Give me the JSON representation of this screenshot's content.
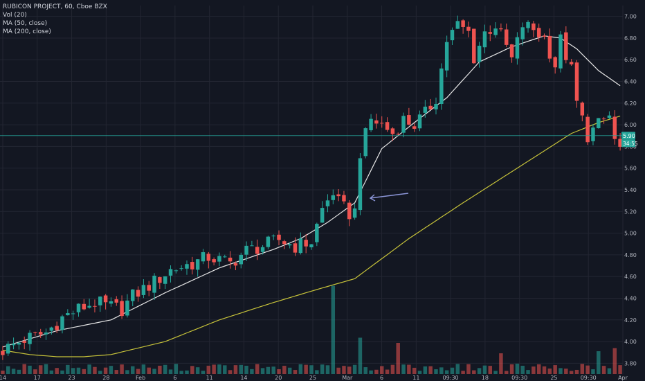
{
  "legend": {
    "title": "RUBICON PROJECT, 60, Cboe BZX",
    "vol": "Vol (20)",
    "ma50": "MA (50, close)",
    "ma200": "MA (200, close)"
  },
  "price_tag": {
    "price": "5.90",
    "countdown": "34:55"
  },
  "colors": {
    "background": "#131722",
    "grid": "#232632",
    "up": "#26a69a",
    "down": "#ef5350",
    "ma50": "#e6e6e6",
    "ma200": "#c8c43a",
    "price_line": "#26a69a",
    "arrow": "#8c96d8",
    "axis_text": "#b2b5be"
  },
  "chart_data": {
    "type": "candlestick",
    "title": "RUBICON PROJECT, 60, Cboe BZX",
    "ylim": [
      3.7,
      7.1
    ],
    "yticks": [
      "3.80",
      "4.00",
      "4.20",
      "4.40",
      "4.60",
      "4.80",
      "5.00",
      "5.20",
      "5.40",
      "5.60",
      "5.80",
      "6.00",
      "6.20",
      "6.40",
      "6.60",
      "6.80",
      "7.00"
    ],
    "xticks": [
      "14",
      "17",
      "23",
      "28",
      "Feb",
      "6",
      "11",
      "14",
      "20",
      "25",
      "Mar",
      "6",
      "11",
      "09:30",
      "18",
      "09:30",
      "25",
      "09:30",
      "Apr"
    ],
    "last_price": 5.9,
    "grid": true,
    "series_anchors": {
      "price": [
        [
          0,
          3.92
        ],
        [
          4,
          4.02
        ],
        [
          8,
          4.08
        ],
        [
          11,
          4.22
        ],
        [
          14,
          4.3
        ],
        [
          17,
          4.36
        ],
        [
          20,
          4.32
        ],
        [
          22,
          4.3
        ],
        [
          24,
          4.42
        ],
        [
          28,
          4.55
        ],
        [
          31,
          4.66
        ],
        [
          35,
          4.72
        ],
        [
          38,
          4.78
        ],
        [
          42,
          4.72
        ],
        [
          45,
          4.84
        ],
        [
          48,
          4.88
        ],
        [
          51,
          4.94
        ],
        [
          54,
          4.88
        ],
        [
          57,
          4.92
        ],
        [
          59,
          5.22
        ],
        [
          61,
          5.38
        ],
        [
          62,
          5.28
        ],
        [
          64,
          5.18
        ],
        [
          65,
          5.2
        ],
        [
          66,
          5.75
        ],
        [
          68,
          6.05
        ],
        [
          70,
          6.0
        ],
        [
          72,
          5.92
        ],
        [
          74,
          6.05
        ],
        [
          76,
          6.0
        ],
        [
          78,
          6.1
        ],
        [
          80,
          6.25
        ],
        [
          82,
          6.78
        ],
        [
          84,
          6.92
        ],
        [
          86,
          6.85
        ],
        [
          87,
          6.62
        ],
        [
          89,
          6.85
        ],
        [
          91,
          6.92
        ],
        [
          93,
          6.72
        ],
        [
          94,
          6.6
        ],
        [
          96,
          6.92
        ],
        [
          98,
          6.88
        ],
        [
          100,
          6.8
        ],
        [
          102,
          6.55
        ],
        [
          103,
          6.78
        ],
        [
          105,
          6.5
        ],
        [
          106,
          6.2
        ],
        [
          108,
          5.9
        ],
        [
          110,
          6.0
        ],
        [
          112,
          6.08
        ],
        [
          113,
          5.85
        ],
        [
          114,
          5.78
        ]
      ],
      "ma50": [
        [
          0,
          3.95
        ],
        [
          10,
          4.1
        ],
        [
          20,
          4.2
        ],
        [
          30,
          4.45
        ],
        [
          40,
          4.68
        ],
        [
          50,
          4.85
        ],
        [
          55,
          4.95
        ],
        [
          60,
          5.1
        ],
        [
          65,
          5.28
        ],
        [
          70,
          5.78
        ],
        [
          76,
          6.02
        ],
        [
          82,
          6.25
        ],
        [
          88,
          6.58
        ],
        [
          94,
          6.72
        ],
        [
          100,
          6.82
        ],
        [
          103,
          6.8
        ],
        [
          106,
          6.7
        ],
        [
          110,
          6.5
        ],
        [
          114,
          6.36
        ]
      ],
      "ma200": [
        [
          0,
          3.92
        ],
        [
          5,
          3.88
        ],
        [
          10,
          3.86
        ],
        [
          15,
          3.86
        ],
        [
          20,
          3.88
        ],
        [
          30,
          4.0
        ],
        [
          40,
          4.2
        ],
        [
          50,
          4.36
        ],
        [
          58,
          4.48
        ],
        [
          65,
          4.58
        ],
        [
          75,
          4.95
        ],
        [
          85,
          5.28
        ],
        [
          95,
          5.6
        ],
        [
          105,
          5.92
        ],
        [
          110,
          6.02
        ],
        [
          114,
          6.08
        ]
      ],
      "volume_spikes": {
        "61": 0.85,
        "66": 0.35,
        "73": 0.3,
        "92": 0.2,
        "110": 0.22,
        "113": 0.25
      }
    }
  }
}
